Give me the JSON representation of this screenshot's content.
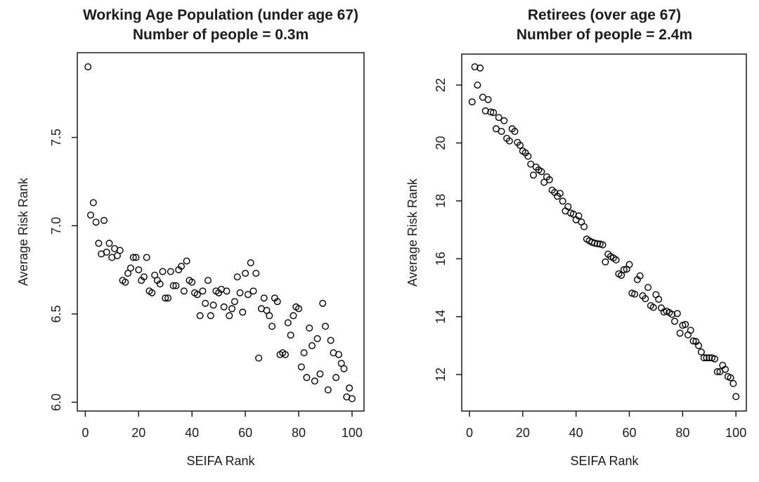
{
  "page": {
    "background": "#ffffff",
    "line_color": "#1c1c1c",
    "marker_style": "open-circle"
  },
  "chart_data": [
    {
      "type": "scatter",
      "title_line1": "Working Age Population (under age 67)",
      "title_line2": "Number of people = 0.3m",
      "xlabel": "SEIFA Rank",
      "ylabel": "Average Risk Rank",
      "xticks": [
        0,
        20,
        40,
        60,
        80,
        100
      ],
      "xtick_labels": [
        "0",
        "20",
        "40",
        "60",
        "80",
        "100"
      ],
      "yticks": [
        6.0,
        6.5,
        7.0,
        7.5
      ],
      "ytick_labels": [
        "6.0",
        "6.5",
        "7.0",
        "7.5"
      ],
      "xlim": [
        -3,
        104.5
      ],
      "ylim": [
        5.95,
        7.98
      ],
      "grid": false,
      "legend": null,
      "marker_color": "#000000",
      "points": {
        "x": [
          1,
          2,
          3,
          4,
          5,
          6,
          7,
          8,
          9,
          10,
          11,
          12,
          13,
          14,
          15,
          16,
          17,
          18,
          19,
          20,
          21,
          22,
          23,
          24,
          25,
          26,
          27,
          28,
          29,
          30,
          31,
          32,
          33,
          34,
          35,
          36,
          37,
          38,
          39,
          40,
          41,
          42,
          43,
          44,
          45,
          46,
          47,
          48,
          49,
          50,
          51,
          52,
          53,
          54,
          55,
          56,
          57,
          58,
          59,
          60,
          61,
          62,
          63,
          64,
          65,
          66,
          67,
          68,
          69,
          70,
          71,
          72,
          73,
          74,
          75,
          76,
          77,
          78,
          79,
          80,
          81,
          82,
          83,
          84,
          85,
          86,
          87,
          88,
          89,
          90,
          91,
          92,
          93,
          94,
          95,
          96,
          97,
          98,
          99,
          100
        ],
        "y": [
          7.9,
          7.06,
          7.13,
          7.02,
          6.9,
          6.84,
          7.03,
          6.85,
          6.9,
          6.82,
          6.87,
          6.83,
          6.86,
          6.69,
          6.68,
          6.73,
          6.76,
          6.82,
          6.82,
          6.75,
          6.69,
          6.71,
          6.82,
          6.63,
          6.62,
          6.72,
          6.69,
          6.67,
          6.74,
          6.59,
          6.59,
          6.74,
          6.66,
          6.66,
          6.75,
          6.77,
          6.63,
          6.8,
          6.69,
          6.68,
          6.62,
          6.61,
          6.49,
          6.63,
          6.56,
          6.69,
          6.49,
          6.55,
          6.63,
          6.62,
          6.64,
          6.54,
          6.63,
          6.49,
          6.53,
          6.57,
          6.71,
          6.62,
          6.51,
          6.73,
          6.61,
          6.79,
          6.63,
          6.73,
          6.25,
          6.53,
          6.59,
          6.52,
          6.49,
          6.43,
          6.59,
          6.57,
          6.27,
          6.28,
          6.27,
          6.45,
          6.38,
          6.49,
          6.54,
          6.53,
          6.2,
          6.28,
          6.14,
          6.42,
          6.32,
          6.12,
          6.36,
          6.16,
          6.56,
          6.43,
          6.07,
          6.35,
          6.28,
          6.14,
          6.27,
          6.22,
          6.19,
          6.03,
          6.08,
          6.02
        ]
      }
    },
    {
      "type": "scatter",
      "title_line1": "Retirees (over age 67)",
      "title_line2": "Number of people = 2.4m",
      "xlabel": "SEIFA Rank",
      "ylabel": "Average Risk Rank",
      "xticks": [
        0,
        20,
        40,
        60,
        80,
        100
      ],
      "xtick_labels": [
        "0",
        "20",
        "40",
        "60",
        "80",
        "100"
      ],
      "yticks": [
        12,
        14,
        16,
        18,
        20,
        22
      ],
      "ytick_labels": [
        "12",
        "14",
        "16",
        "18",
        "20",
        "22"
      ],
      "xlim": [
        -2.9,
        103.9
      ],
      "ylim": [
        10.74,
        23.07
      ],
      "grid": false,
      "legend": null,
      "marker_color": "#000000",
      "points": {
        "x": [
          1,
          2,
          3,
          4,
          5,
          6,
          7,
          8,
          9,
          10,
          11,
          12,
          13,
          14,
          15,
          16,
          17,
          18,
          19,
          20,
          21,
          22,
          23,
          24,
          25,
          26,
          27,
          28,
          29,
          30,
          31,
          32,
          33,
          34,
          35,
          36,
          37,
          38,
          39,
          40,
          41,
          42,
          43,
          44,
          45,
          46,
          47,
          48,
          49,
          50,
          51,
          52,
          53,
          54,
          55,
          56,
          57,
          58,
          59,
          60,
          61,
          62,
          63,
          64,
          65,
          66,
          67,
          68,
          69,
          70,
          71,
          72,
          73,
          74,
          75,
          76,
          77,
          78,
          79,
          80,
          81,
          82,
          83,
          84,
          85,
          86,
          87,
          88,
          89,
          90,
          91,
          92,
          93,
          94,
          95,
          96,
          97,
          98,
          99,
          100
        ],
        "y": [
          21.42,
          22.63,
          22.0,
          22.59,
          21.58,
          21.11,
          21.5,
          21.07,
          21.05,
          20.49,
          20.88,
          20.4,
          20.77,
          20.16,
          20.07,
          20.49,
          20.4,
          20.02,
          19.92,
          19.72,
          19.66,
          19.54,
          19.27,
          18.89,
          19.17,
          19.07,
          19.01,
          18.64,
          18.83,
          18.73,
          18.37,
          18.29,
          18.16,
          18.26,
          17.99,
          17.65,
          17.8,
          17.58,
          17.54,
          17.35,
          17.48,
          17.27,
          17.11,
          16.68,
          16.62,
          16.57,
          16.54,
          16.52,
          16.51,
          16.48,
          15.89,
          16.16,
          16.08,
          16.03,
          15.96,
          15.48,
          15.43,
          15.62,
          15.64,
          15.8,
          14.81,
          14.78,
          15.28,
          15.41,
          14.72,
          14.62,
          15.01,
          14.38,
          14.32,
          14.76,
          14.6,
          14.3,
          14.16,
          14.19,
          14.14,
          14.08,
          13.84,
          14.11,
          13.43,
          13.7,
          13.73,
          13.37,
          13.53,
          13.16,
          13.14,
          13.0,
          12.78,
          12.58,
          12.58,
          12.58,
          12.58,
          12.54,
          12.1,
          12.1,
          12.32,
          12.18,
          11.93,
          11.89,
          11.69,
          11.24
        ]
      }
    }
  ]
}
